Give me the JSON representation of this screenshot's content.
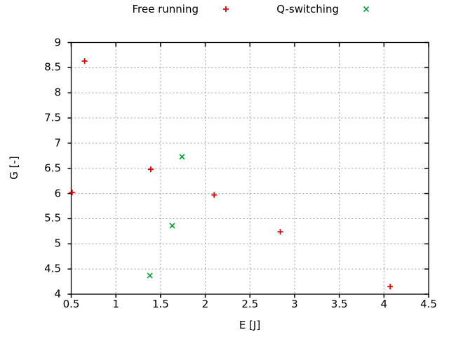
{
  "chart_data": {
    "type": "scatter",
    "title": "",
    "xlabel": "E [J]",
    "ylabel": "G [-]",
    "xlim": [
      0.5,
      4.5
    ],
    "ylim": [
      4,
      9
    ],
    "x_ticks": [
      "0.5",
      "1",
      "1.5",
      "2",
      "2.5",
      "3",
      "3.5",
      "4",
      "4.5"
    ],
    "y_ticks": [
      "4",
      "4.5",
      "5",
      "5.5",
      "6",
      "6.5",
      "7",
      "7.5",
      "8",
      "8.5",
      "9"
    ],
    "grid": true,
    "grid_style": "dashed",
    "legend_position": "top-center-outside",
    "series": [
      {
        "name": "Free running",
        "marker": "plus",
        "color": "#e00000",
        "points": [
          [
            0.51,
            6.02
          ],
          [
            0.65,
            8.63
          ],
          [
            1.39,
            6.48
          ],
          [
            2.1,
            5.97
          ],
          [
            2.84,
            5.24
          ],
          [
            4.07,
            4.15
          ]
        ]
      },
      {
        "name": "Q-switching",
        "marker": "cross",
        "color": "#00a030",
        "points": [
          [
            1.38,
            4.37
          ],
          [
            1.63,
            5.36
          ],
          [
            1.74,
            6.73
          ]
        ]
      }
    ],
    "colors": {
      "axis": "#000000",
      "grid": "#999999",
      "background": "#ffffff"
    }
  }
}
